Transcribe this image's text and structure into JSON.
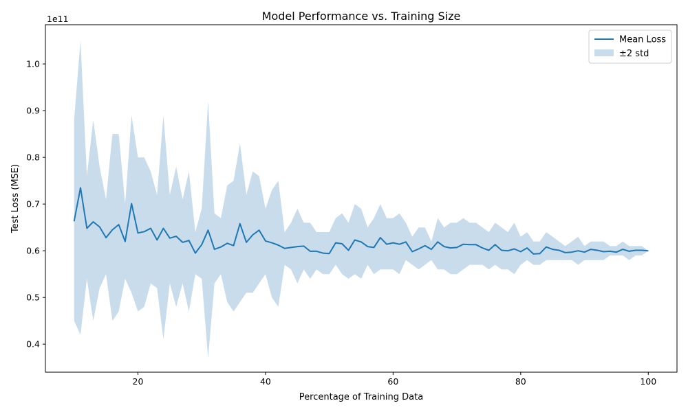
{
  "chart_data": {
    "type": "line",
    "title": "Model Performance vs. Training Size",
    "xlabel": "Percentage of Training Data",
    "ylabel": "Test Loss (MSE)",
    "y_offset_label": "1e11",
    "xlim": [
      5.5,
      104.5
    ],
    "ylim": [
      0.34,
      1.084
    ],
    "x_ticks": [
      20,
      40,
      60,
      80,
      100
    ],
    "y_ticks": [
      0.4,
      0.5,
      0.6,
      0.7,
      0.8,
      0.9,
      1.0
    ],
    "legend_position": "top-right",
    "grid": false,
    "colors": {
      "line": "#1f77b4",
      "band": "#c8dcec"
    },
    "series": [
      {
        "name": "Mean Loss",
        "kind": "line",
        "x": [
          10,
          11,
          12,
          13,
          14,
          15,
          16,
          17,
          18,
          19,
          20,
          21,
          22,
          23,
          24,
          25,
          26,
          27,
          28,
          29,
          30,
          31,
          32,
          33,
          34,
          35,
          36,
          37,
          38,
          39,
          40,
          41,
          42,
          43,
          44,
          45,
          46,
          47,
          48,
          49,
          50,
          51,
          52,
          53,
          54,
          55,
          56,
          57,
          58,
          59,
          60,
          61,
          62,
          63,
          64,
          65,
          66,
          67,
          68,
          69,
          70,
          71,
          72,
          73,
          74,
          75,
          76,
          77,
          78,
          79,
          80,
          81,
          82,
          83,
          84,
          85,
          86,
          87,
          88,
          89,
          90,
          91,
          92,
          93,
          94,
          95,
          96,
          97,
          98,
          99,
          100
        ],
        "y": [
          0.663,
          0.735,
          0.648,
          0.662,
          0.651,
          0.628,
          0.645,
          0.656,
          0.62,
          0.701,
          0.638,
          0.641,
          0.648,
          0.623,
          0.648,
          0.627,
          0.631,
          0.618,
          0.622,
          0.595,
          0.613,
          0.644,
          0.603,
          0.608,
          0.616,
          0.611,
          0.658,
          0.618,
          0.634,
          0.644,
          0.621,
          0.617,
          0.612,
          0.605,
          0.607,
          0.609,
          0.61,
          0.599,
          0.599,
          0.595,
          0.594,
          0.617,
          0.615,
          0.601,
          0.623,
          0.619,
          0.609,
          0.607,
          0.628,
          0.614,
          0.617,
          0.614,
          0.619,
          0.598,
          0.604,
          0.611,
          0.603,
          0.619,
          0.609,
          0.606,
          0.607,
          0.614,
          0.613,
          0.613,
          0.606,
          0.601,
          0.613,
          0.601,
          0.6,
          0.604,
          0.598,
          0.606,
          0.593,
          0.594,
          0.608,
          0.603,
          0.601,
          0.596,
          0.597,
          0.6,
          0.597,
          0.603,
          0.601,
          0.598,
          0.599,
          0.597,
          0.603,
          0.599,
          0.601,
          0.601,
          0.6
        ]
      },
      {
        "name": "±2 std",
        "kind": "band",
        "x": [
          10,
          11,
          12,
          13,
          14,
          15,
          16,
          17,
          18,
          19,
          20,
          21,
          22,
          23,
          24,
          25,
          26,
          27,
          28,
          29,
          30,
          31,
          32,
          33,
          34,
          35,
          36,
          37,
          38,
          39,
          40,
          41,
          42,
          43,
          44,
          45,
          46,
          47,
          48,
          49,
          50,
          51,
          52,
          53,
          54,
          55,
          56,
          57,
          58,
          59,
          60,
          61,
          62,
          63,
          64,
          65,
          66,
          67,
          68,
          69,
          70,
          71,
          72,
          73,
          74,
          75,
          76,
          77,
          78,
          79,
          80,
          81,
          82,
          83,
          84,
          85,
          86,
          87,
          88,
          89,
          90,
          91,
          92,
          93,
          94,
          95,
          96,
          97,
          98,
          99,
          100
        ],
        "upper": [
          0.88,
          1.05,
          0.76,
          0.88,
          0.78,
          0.71,
          0.85,
          0.85,
          0.7,
          0.89,
          0.8,
          0.8,
          0.77,
          0.72,
          0.89,
          0.72,
          0.78,
          0.71,
          0.77,
          0.64,
          0.69,
          0.92,
          0.68,
          0.67,
          0.74,
          0.75,
          0.83,
          0.72,
          0.77,
          0.76,
          0.69,
          0.73,
          0.75,
          0.64,
          0.66,
          0.69,
          0.66,
          0.66,
          0.64,
          0.64,
          0.64,
          0.67,
          0.68,
          0.66,
          0.7,
          0.69,
          0.65,
          0.67,
          0.7,
          0.67,
          0.67,
          0.68,
          0.66,
          0.63,
          0.65,
          0.65,
          0.62,
          0.67,
          0.65,
          0.66,
          0.66,
          0.67,
          0.66,
          0.66,
          0.65,
          0.64,
          0.66,
          0.65,
          0.64,
          0.66,
          0.63,
          0.64,
          0.62,
          0.62,
          0.64,
          0.63,
          0.62,
          0.61,
          0.62,
          0.63,
          0.61,
          0.62,
          0.62,
          0.62,
          0.61,
          0.61,
          0.62,
          0.61,
          0.61,
          0.61,
          0.6
        ],
        "lower": [
          0.45,
          0.42,
          0.54,
          0.45,
          0.52,
          0.55,
          0.45,
          0.47,
          0.54,
          0.51,
          0.47,
          0.48,
          0.53,
          0.52,
          0.41,
          0.53,
          0.48,
          0.53,
          0.47,
          0.55,
          0.54,
          0.37,
          0.53,
          0.55,
          0.49,
          0.47,
          0.49,
          0.51,
          0.51,
          0.53,
          0.55,
          0.5,
          0.48,
          0.57,
          0.56,
          0.53,
          0.56,
          0.54,
          0.56,
          0.55,
          0.55,
          0.57,
          0.55,
          0.54,
          0.55,
          0.54,
          0.57,
          0.55,
          0.56,
          0.56,
          0.56,
          0.55,
          0.58,
          0.57,
          0.56,
          0.57,
          0.58,
          0.56,
          0.56,
          0.55,
          0.55,
          0.56,
          0.57,
          0.57,
          0.57,
          0.56,
          0.57,
          0.56,
          0.56,
          0.55,
          0.57,
          0.58,
          0.57,
          0.57,
          0.58,
          0.58,
          0.58,
          0.58,
          0.58,
          0.57,
          0.58,
          0.58,
          0.58,
          0.58,
          0.59,
          0.59,
          0.59,
          0.58,
          0.59,
          0.59,
          0.6
        ]
      }
    ]
  }
}
